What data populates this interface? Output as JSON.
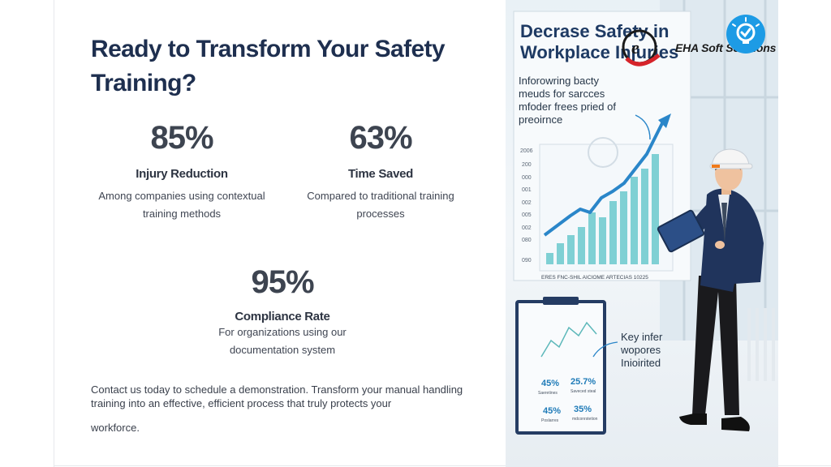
{
  "headline": "Ready to Transform Your Safety Training?",
  "stats": [
    {
      "value": "85%",
      "label": "Injury Reduction",
      "desc": "Among companies using contextual training methods"
    },
    {
      "value": "63%",
      "label": "Time Saved",
      "desc": "Compared to traditional training processes"
    },
    {
      "value": "95%",
      "label": "Compliance Rate",
      "desc_line1": "For organizations using our",
      "desc_line2": "documentation system"
    }
  ],
  "cta": {
    "text": "Contact us today to schedule a demonstration. Transform your manual handling training into an effective, efficient process that truly protects your",
    "tail": "workforce."
  },
  "brand": {
    "name": "EHA Soft Solutions",
    "accent": "#d6232a"
  },
  "illustration": {
    "poster_title_1": "Decrase Safety in",
    "poster_title_2": "Workplace Injuries",
    "poster_sub": [
      "Inforowring bacty",
      "meuds for sarcces",
      "mfoder frees pried of",
      "preoirnce"
    ],
    "chart_yticks": [
      "2006",
      "200",
      "000",
      "001",
      "002",
      "005",
      "002",
      "080",
      "090"
    ],
    "chart_caption": "ERES FNC-SHIL AICIOME ARTECIAS 10225",
    "key_note": [
      "Key infer",
      "wopores",
      "Inioirited"
    ],
    "clipboard": [
      {
        "value": "45%",
        "label": "Saeretines"
      },
      {
        "value": "25.7%",
        "label": "Saveced steal"
      },
      {
        "value": "45%",
        "label": "Poslarres"
      },
      {
        "value": "35%",
        "label": "mdconrstetion"
      }
    ],
    "colors": {
      "chart_line": "#2a86c9",
      "bars": "#7fd0d4",
      "suit": "#20345c"
    }
  }
}
